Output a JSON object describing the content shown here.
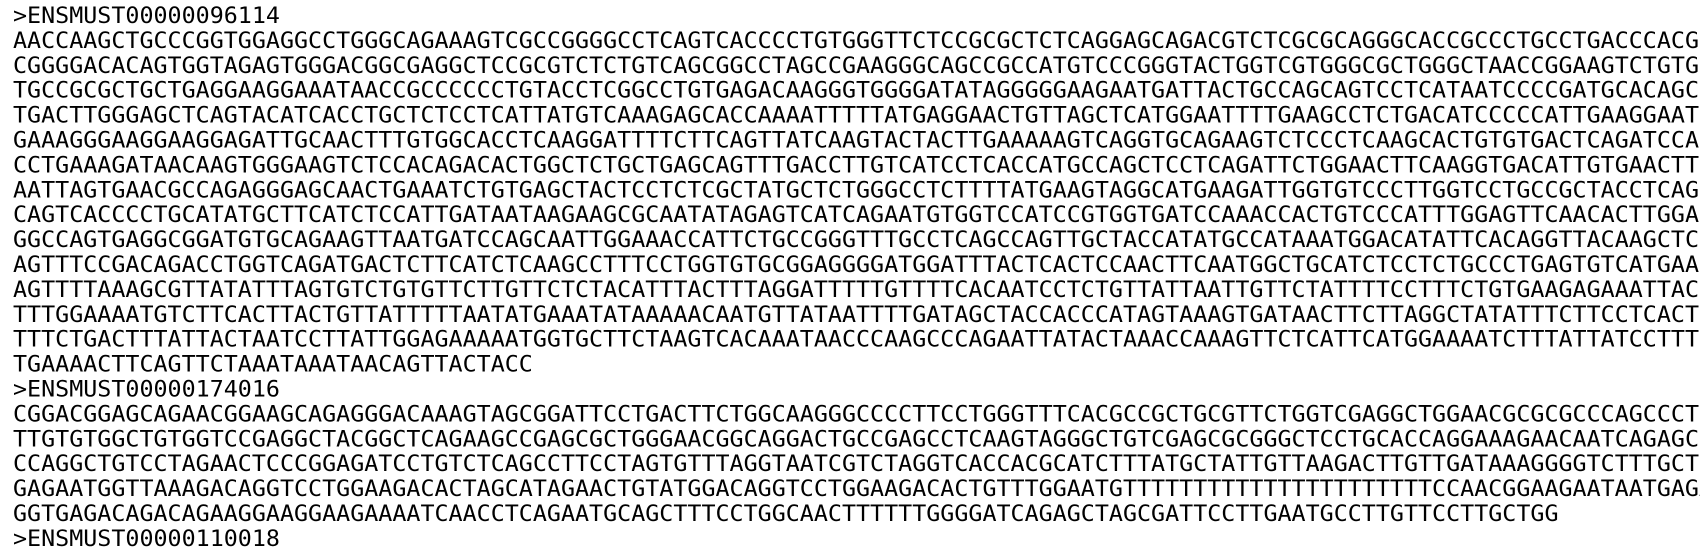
{
  "records": [
    {
      "header": ">ENSMUST00000096114",
      "lines": [
        "AACCAAGCTGCCCGGTGGAGGCCTGGGCAGAAAGTCGCCGGGGCCTCAGTCACCCCTGTGGGTTCTCCGCGCTCTCAGGAGCAGACGTCTCGCGCAGGGCACCGCCCTGCCTGACCCACG",
        "CGGGGACACAGTGGTAGAGTGGGACGGCGAGGCTCCGCGTCTCTGTCAGCGGCCTAGCCGAAGGGCAGCCGCCATGTCCCGGGTACTGGTCGTGGGCGCTGGGCTAACCGGAAGTCTGTG",
        "TGCCGCGCTGCTGAGGAAGGAAATAACCGCCCCCCTGTACCTCGGCCTGTGAGACAAGGGTGGGGATATAGGGGGAAGAATGATTACTGCCAGCAGTCCTCATAATCCCCGATGCACAGC",
        "TGACTTGGGAGCTCAGTACATCACCTGCTCTCCTCATTATGTCAAAGAGCACCAAAATTTTTATGAGGAACTGTTAGCTCATGGAATTTTGAAGCCTCTGACATCCCCCATTGAAGGAAT",
        "GAAAGGGAAGGAAGGAGATTGCAACTTTGTGGCACCTCAAGGATTTTCTTCAGTTATCAAGTACTACTTGAAAAAGTCAGGTGCAGAAGTCTCCCTCAAGCACTGTGTGACTCAGATCCA",
        "CCTGAAAGATAACAAGTGGGAAGTCTCCACAGACACTGGCTCTGCTGAGCAGTTTGACCTTGTCATCCTCACCATGCCAGCTCCTCAGATTCTGGAACTTCAAGGTGACATTGTGAACTT",
        "AATTAGTGAACGCCAGAGGGAGCAACTGAAATCTGTGAGCTACTCCTCTCGCTATGCTCTGGGCCTCTTTTATGAAGTAGGCATGAAGATTGGTGTCCCTTGGTCCTGCCGCTACCTCAG",
        "CAGTCACCCCTGCATATGCTTCATCTCCATTGATAATAAGAAGCGCAATATAGAGTCATCAGAATGTGGTCCATCCGTGGTGATCCAAACCACTGTCCCATTTGGAGTTCAACACTTGGA",
        "GGCCAGTGAGGCGGATGTGCAGAAGTTAATGATCCAGCAATTGGAAACCATTCTGCCGGGTTTGCCTCAGCCAGTTGCTACCATATGCCATAAATGGACATATTCACAGGTTACAAGCTC",
        "AGTTTCCGACAGACCTGGTCAGATGACTCTTCATCTCAAGCCTTTCCTGGTGTGCGGAGGGGATGGATTTACTCACTCCAACTTCAATGGCTGCATCTCCTCTGCCCTGAGTGTCATGAA",
        "AGTTTTAAAGCGTTATATTTAGTGTCTGTGTTCTTGTTCTCTACATTTACTTTAGGATTTTTGTTTTCACAATCCTCTGTTATTAATTGTTCTATTTTCCTTTCTGTGAAGAGAAATTAC",
        "TTTGGAAAATGTCTTCACTTACTGTTATTTTTAATATGAAATATAAAAACAATGTTATAATTTTGATAGCTACCACCCATAGTAAAGTGATAACTTCTTAGGCTATATTTCTTCCTCACT",
        "TTTCTGACTTTATTACTAATCCTTATTGGAGAAAAATGGTGCTTCTAAGTCACAAATAACCCAAGCCCAGAATTATACTAAACCAAAGTTCTCATTCATGGAAAATCTTTATTATCCTTT",
        "TGAAAACTTCAGTTCTAAATAAATAACAGTTACTACC"
      ]
    },
    {
      "header": ">ENSMUST00000174016",
      "lines": [
        "CGGACGGAGCAGAACGGAAGCAGAGGGACAAAGTAGCGGATTCCTGACTTCTGGCAAGGGCCCCTTCCTGGGTTTCACGCCGCTGCGTTCTGGTCGAGGCTGGAACGCGCGCCCAGCCCT",
        "TTGTGTGGCTGTGGTCCGAGGCTACGGCTCAGAAGCCGAGCGCTGGGAACGGCAGGACTGCCGAGCCTCAAGTAGGGCTGTCGAGCGCGGGCTCCTGCACCAGGAAAGAACAATCAGAGC",
        "CCAGGCTGTCCTAGAACTCCCGGAGATCCTGTCTCAGCCTTCCTAGTGTTTAGGTAATCGTCTAGGTCACCACGCATCTTTATGCTATTGTTAAGACTTGTTGATAAAGGGGTCTTTGCT",
        "GAGAATGGTTAAAGACAGGTCCTGGAAGACACTAGCATAGAACTGTATGGACAGGTCCTGGAAGACACTGTTTGGAATGTTTTTTTTTTTTTTTTTTTTTTCCAACGGAAGAATAATGAGA",
        "GGTGAGACAGACAGAAGGAAGGAAGAAAATCAACCTCAGAATGCAGCTTTCCTGGCAACTTTTTTGGGGATCAGAGCTAGCGATTCCTTGAATGCCTTGTTCCTTGCTGG"
      ]
    },
    {
      "header": ">ENSMUST00000110018",
      "lines": []
    }
  ]
}
